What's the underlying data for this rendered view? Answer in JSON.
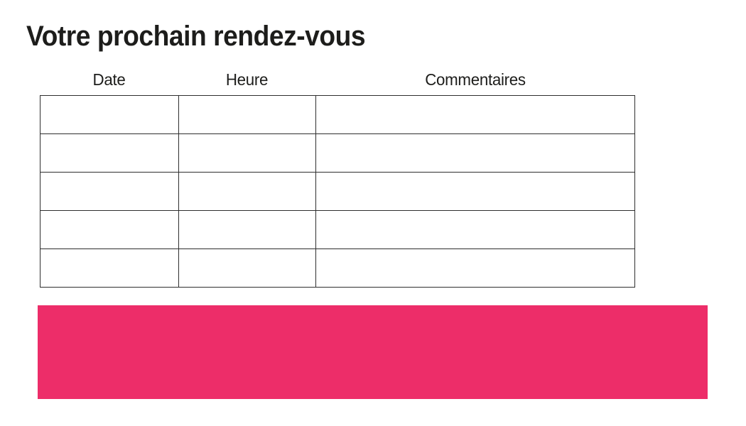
{
  "page": {
    "title": "Votre prochain rendez-vous",
    "background": "#ffffff"
  },
  "table": {
    "columns": [
      {
        "label": "Date"
      },
      {
        "label": "Heure"
      },
      {
        "label": "Commentaires"
      }
    ],
    "rows": [
      [
        "",
        "",
        ""
      ],
      [
        "",
        "",
        ""
      ],
      [
        "",
        "",
        ""
      ],
      [
        "",
        "",
        ""
      ],
      [
        "",
        "",
        ""
      ]
    ]
  },
  "footer_block": {
    "color": "#ed2d69"
  },
  "colors": {
    "text": "#1d1d1b",
    "table_border": "#2e2e2e",
    "accent_pink": "#ed2d69"
  }
}
